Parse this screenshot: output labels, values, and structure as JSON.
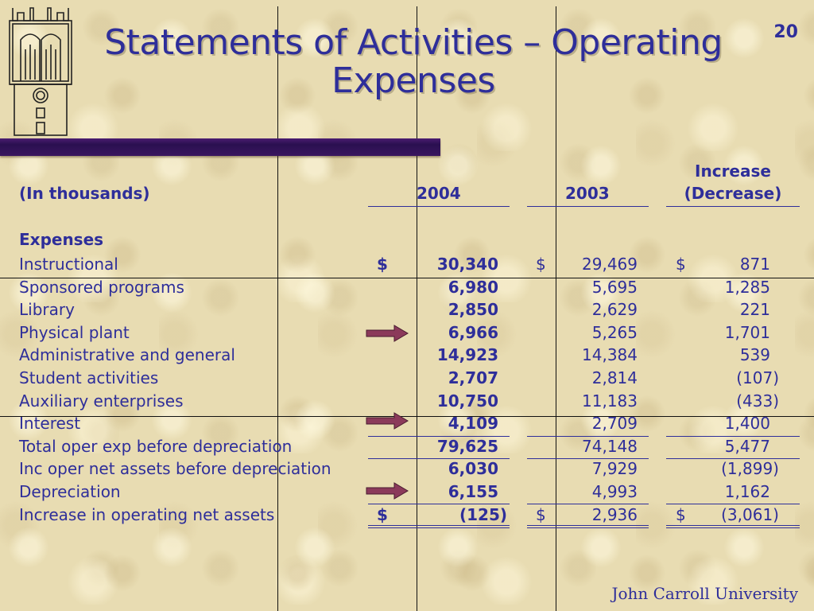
{
  "slide": {
    "number": "20",
    "title_line1": "Statements of Activities – Operating",
    "title_line2": "Expenses",
    "footer": "John Carroll University",
    "accent_color": "#2e2e9a",
    "bar_color": "#3a1660",
    "arrow_color": "#8b3a5a"
  },
  "table": {
    "unit_label": "(In thousands)",
    "col_2004": "2004",
    "col_2003": "2003",
    "col_change_line1": "Increase",
    "col_change_line2": "(Decrease)",
    "section_label": "Expenses",
    "rows": [
      {
        "label": "Instructional",
        "d1": "$",
        "v2004": "30,340",
        "d2": "$",
        "v2003": "29,469",
        "d3": "$",
        "change": "871"
      },
      {
        "label": "Sponsored programs",
        "v2004": "6,980",
        "v2003": "5,695",
        "change": "1,285"
      },
      {
        "label": "Library",
        "v2004": "2,850",
        "v2003": "2,629",
        "change": "221"
      },
      {
        "label": "Physical plant",
        "v2004": "6,966",
        "v2003": "5,265",
        "change": "1,701"
      },
      {
        "label": "Administrative and general",
        "v2004": "14,923",
        "v2003": "14,384",
        "change": "539"
      },
      {
        "label": "Student activities",
        "v2004": "2,707",
        "v2003": "2,814",
        "change": "(107)"
      },
      {
        "label": "Auxiliary enterprises",
        "v2004": "10,750",
        "v2003": "11,183",
        "change": "(433)"
      },
      {
        "label": "Interest",
        "v2004": "4,109",
        "v2003": "2,709",
        "change": "1,400"
      },
      {
        "label": "Total oper exp before depreciation",
        "v2004": "79,625",
        "v2003": "74,148",
        "change": "5,477"
      },
      {
        "label": "Inc oper net assets before depreciation",
        "v2004": "6,030",
        "v2003": "7,929",
        "change": "(1,899)"
      },
      {
        "label": "Depreciation",
        "v2004": "6,155",
        "v2003": "4,993",
        "change": "1,162"
      },
      {
        "label": "Increase in operating net assets",
        "d1": "$",
        "v2004": "(125)",
        "d2": "$",
        "v2003": "2,936",
        "d3": "$",
        "change": "(3,061)"
      }
    ]
  }
}
